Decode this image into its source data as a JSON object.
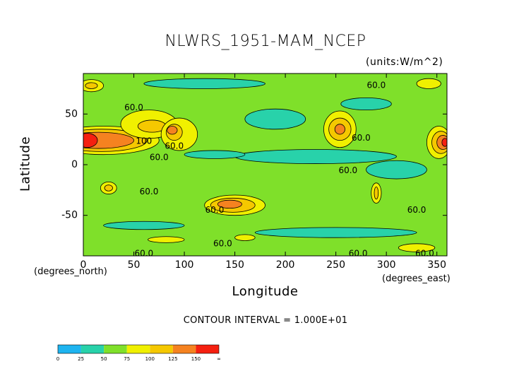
{
  "title": "NLWRS_1951-MAM_NCEP",
  "units": "(units:W/m^2)",
  "xlabel": "Longitude",
  "ylabel": "Latitude",
  "y_sub": "(degrees_north)",
  "x_sub": "(degrees_east)",
  "contour_interval": "CONTOUR INTERVAL = 1.000E+01",
  "colors": {
    "c0_25": "#1eb4f0",
    "c25_50": "#28d2aa",
    "c50_75": "#7fe02a",
    "c75_100": "#f0f000",
    "c100_125": "#f5c800",
    "c125_150": "#f58220",
    "c150_inf": "#f52010",
    "contour_line": "#000000"
  },
  "chart_data": {
    "type": "heatmap",
    "title": "NLWRS_1951-MAM_NCEP",
    "xlabel": "Longitude",
    "ylabel": "Latitude",
    "xlim": [
      0,
      360
    ],
    "ylim": [
      -90,
      90
    ],
    "x_ticks": [
      0,
      50,
      100,
      150,
      200,
      250,
      300,
      350
    ],
    "y_ticks": [
      50,
      0,
      -50
    ],
    "x_tick_labels": [
      "0",
      "50",
      "100",
      "150",
      "200",
      "250",
      "300",
      "350"
    ],
    "y_tick_labels": [
      "50",
      "0",
      "-50"
    ],
    "colorbar": {
      "levels": [
        0,
        25,
        50,
        75,
        100,
        125,
        150
      ],
      "tick_labels": [
        "0",
        "25",
        "50",
        "75",
        "100",
        "125",
        "150",
        "∞"
      ]
    },
    "contour_labels": [
      {
        "text": "60.0",
        "lon": 50,
        "lat": 56
      },
      {
        "text": "60.0",
        "lon": 290,
        "lat": 78
      },
      {
        "text": "100",
        "lon": 60,
        "lat": 23
      },
      {
        "text": "60.0",
        "lon": 90,
        "lat": 18
      },
      {
        "text": "60.0",
        "lon": 75,
        "lat": 7
      },
      {
        "text": "60.0",
        "lon": 275,
        "lat": 26
      },
      {
        "text": "60.0",
        "lon": 262,
        "lat": -6
      },
      {
        "text": "60.0",
        "lon": 65,
        "lat": -27
      },
      {
        "text": "60.0",
        "lon": 130,
        "lat": -45
      },
      {
        "text": "60.0",
        "lon": 330,
        "lat": -45
      },
      {
        "text": "60.0",
        "lon": 60,
        "lat": -88
      },
      {
        "text": "60.0",
        "lon": 138,
        "lat": -78
      },
      {
        "text": "60.0",
        "lon": 272,
        "lat": -88
      },
      {
        "text": "60.0",
        "lon": 338,
        "lat": -88
      }
    ],
    "regions": [
      {
        "level": 75,
        "lon": 150,
        "lat": -40,
        "rlon": 30,
        "rlat": 10
      },
      {
        "level": 100,
        "lon": 148,
        "lat": -40,
        "rlon": 22,
        "rlat": 7
      },
      {
        "level": 125,
        "lon": 145,
        "lat": -39,
        "rlon": 12,
        "rlat": 4
      },
      {
        "level": 75,
        "lon": 20,
        "lat": 24,
        "rlon": 55,
        "rlat": 14
      },
      {
        "level": 100,
        "lon": 18,
        "lat": 24,
        "rlon": 45,
        "rlat": 11
      },
      {
        "level": 125,
        "lon": 15,
        "lat": 24,
        "rlon": 35,
        "rlat": 8
      },
      {
        "level": 150,
        "lon": 4,
        "lat": 24,
        "rlon": 10,
        "rlat": 7
      },
      {
        "level": 75,
        "lon": 65,
        "lat": 40,
        "rlon": 28,
        "rlat": 14
      },
      {
        "level": 100,
        "lon": 68,
        "lat": 38,
        "rlon": 14,
        "rlat": 6
      },
      {
        "level": 75,
        "lon": 95,
        "lat": 30,
        "rlon": 18,
        "rlat": 16
      },
      {
        "level": 100,
        "lon": 90,
        "lat": 32,
        "rlon": 8,
        "rlat": 8
      },
      {
        "level": 125,
        "lon": 88,
        "lat": 34,
        "rlon": 5,
        "rlat": 4
      },
      {
        "level": 75,
        "lon": 254,
        "lat": 35,
        "rlon": 16,
        "rlat": 18
      },
      {
        "level": 100,
        "lon": 254,
        "lat": 35,
        "rlon": 11,
        "rlat": 11
      },
      {
        "level": 125,
        "lon": 254,
        "lat": 35,
        "rlon": 5,
        "rlat": 5
      },
      {
        "level": 75,
        "lon": 352,
        "lat": 22,
        "rlon": 12,
        "rlat": 16
      },
      {
        "level": 100,
        "lon": 354,
        "lat": 22,
        "rlon": 9,
        "rlat": 11
      },
      {
        "level": 125,
        "lon": 356,
        "lat": 22,
        "rlon": 6,
        "rlat": 7
      },
      {
        "level": 150,
        "lon": 358,
        "lat": 22,
        "rlon": 3,
        "rlat": 4
      },
      {
        "level": 75,
        "lon": 25,
        "lat": -23,
        "rlon": 8,
        "rlat": 6
      },
      {
        "level": 100,
        "lon": 25,
        "lat": -23,
        "rlon": 4,
        "rlat": 3
      },
      {
        "level": 75,
        "lon": 290,
        "lat": -28,
        "rlon": 5,
        "rlat": 10
      },
      {
        "level": 100,
        "lon": 290,
        "lat": -28,
        "rlon": 2,
        "rlat": 6
      },
      {
        "level": 75,
        "lon": 8,
        "lat": 78,
        "rlon": 12,
        "rlat": 6
      },
      {
        "level": 100,
        "lon": 8,
        "lat": 78,
        "rlon": 6,
        "rlat": 3
      },
      {
        "level": 75,
        "lon": 342,
        "lat": 80,
        "rlon": 12,
        "rlat": 5
      },
      {
        "level": 75,
        "lon": 82,
        "lat": -74,
        "rlon": 18,
        "rlat": 3
      },
      {
        "level": 75,
        "lon": 160,
        "lat": -72,
        "rlon": 10,
        "rlat": 3
      },
      {
        "level": 75,
        "lon": 330,
        "lat": -82,
        "rlon": 18,
        "rlat": 4
      },
      {
        "level": 25,
        "lon": 230,
        "lat": 8,
        "rlon": 80,
        "rlat": 7
      },
      {
        "level": 25,
        "lon": 190,
        "lat": 45,
        "rlon": 30,
        "rlat": 10
      },
      {
        "level": 25,
        "lon": 310,
        "lat": -5,
        "rlon": 30,
        "rlat": 9
      },
      {
        "level": 25,
        "lon": 130,
        "lat": 10,
        "rlon": 30,
        "rlat": 4
      },
      {
        "level": 25,
        "lon": 250,
        "lat": -67,
        "rlon": 80,
        "rlat": 5
      },
      {
        "level": 25,
        "lon": 120,
        "lat": 80,
        "rlon": 60,
        "rlat": 5
      },
      {
        "level": 25,
        "lon": 60,
        "lat": -60,
        "rlon": 40,
        "rlat": 4
      },
      {
        "level": 25,
        "lon": 280,
        "lat": 60,
        "rlon": 25,
        "rlat": 6
      }
    ]
  }
}
